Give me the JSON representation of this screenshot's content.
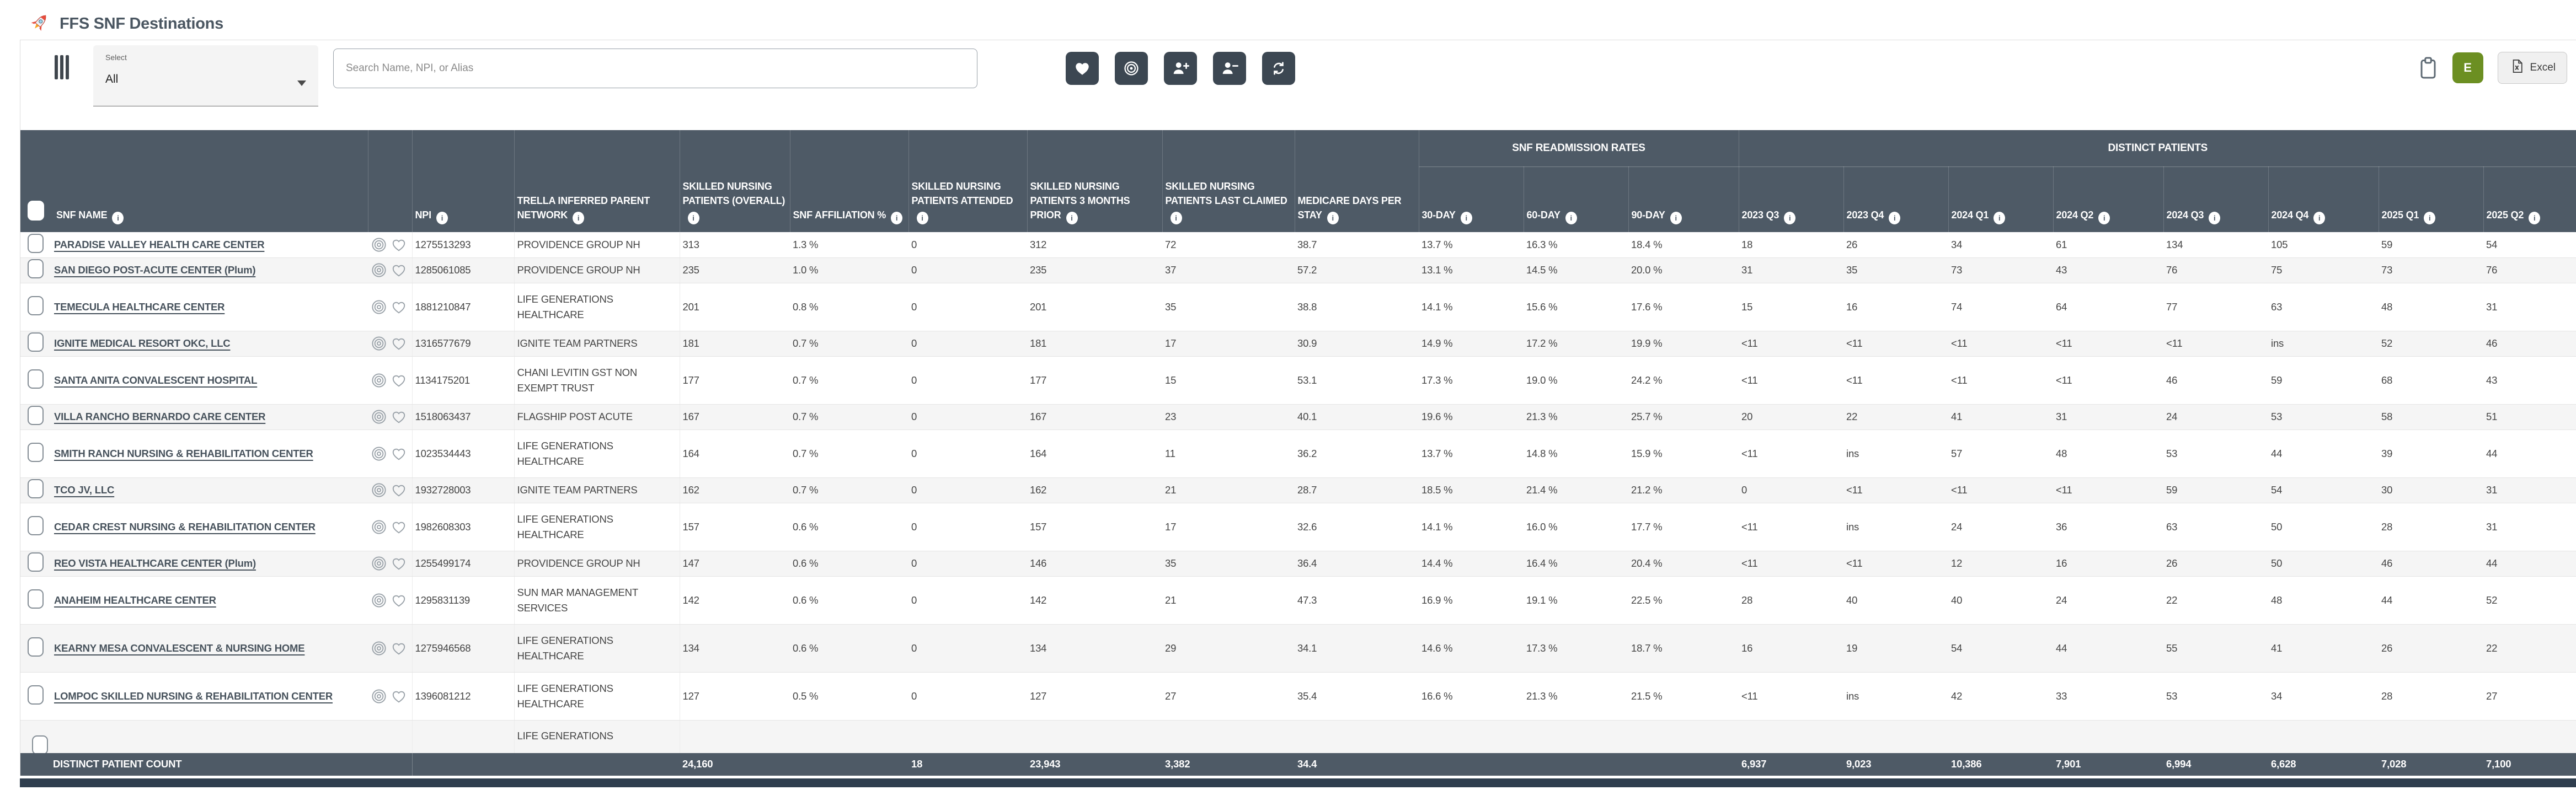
{
  "header": {
    "title": "FFS SNF Destinations"
  },
  "toolbar": {
    "filter_label": "Select",
    "filter_value": "All",
    "search_placeholder": "Search Name, NPI, or Alias",
    "actions": [
      "heart",
      "target",
      "person-add",
      "person-remove",
      "refresh"
    ],
    "avatar_label": "E",
    "excel_label": "Excel"
  },
  "colors": {
    "header_bg": "#4E5A66",
    "button_dark": "#3C4752",
    "accent_green": "#6C8F22",
    "scrollbar": "#2F3E4E",
    "row_alt": "#F5F5F5"
  },
  "table": {
    "groups": {
      "rates_group": "SNF READMISSION RATES",
      "patients_group": "DISTINCT PATIENTS"
    },
    "columns": {
      "snf_name": "SNF NAME",
      "npi": "NPI",
      "network": "TRELLA INFERRED PARENT NETWORK",
      "overall": "SKILLED NURSING PATIENTS (OVERALL)",
      "affiliation": "SNF AFFILIATION %",
      "attended": "SKILLED NURSING PATIENTS ATTENDED",
      "prior": "SKILLED NURSING PATIENTS 3 MONTHS PRIOR",
      "last_claimed": "SKILLED NURSING PATIENTS LAST CLAIMED",
      "medicare_days": "MEDICARE DAYS PER STAY",
      "rates": [
        "30-DAY",
        "60-DAY",
        "90-DAY"
      ],
      "quarters": [
        "2023 Q3",
        "2023 Q4",
        "2024 Q1",
        "2024 Q2",
        "2024 Q3",
        "2024 Q4",
        "2025 Q1",
        "2025 Q2"
      ]
    },
    "rows": [
      {
        "name": "PARADISE VALLEY HEALTH CARE CENTER",
        "npi": "1275513293",
        "network": "PROVIDENCE GROUP NH",
        "overall": "313",
        "affiliation": "1.3 %",
        "attended": "0",
        "prior": "312",
        "last_claimed": "72",
        "medicare_days": "38.7",
        "rates": [
          "13.7 %",
          "16.3 %",
          "18.4 %"
        ],
        "quarters": [
          "18",
          "26",
          "34",
          "61",
          "134",
          "105",
          "59",
          "54"
        ]
      },
      {
        "name": "SAN DIEGO POST-ACUTE CENTER (Plum)",
        "npi": "1285061085",
        "network": "PROVIDENCE GROUP NH",
        "overall": "235",
        "affiliation": "1.0 %",
        "attended": "0",
        "prior": "235",
        "last_claimed": "37",
        "medicare_days": "57.2",
        "rates": [
          "13.1 %",
          "14.5 %",
          "20.0 %"
        ],
        "quarters": [
          "31",
          "35",
          "73",
          "43",
          "76",
          "75",
          "73",
          "76"
        ]
      },
      {
        "name": "TEMECULA HEALTHCARE CENTER",
        "npi": "1881210847",
        "network": "LIFE GENERATIONS\nHEALTHCARE",
        "overall": "201",
        "affiliation": "0.8 %",
        "attended": "0",
        "prior": "201",
        "last_claimed": "35",
        "medicare_days": "38.8",
        "rates": [
          "14.1 %",
          "15.6 %",
          "17.6 %"
        ],
        "quarters": [
          "15",
          "16",
          "74",
          "64",
          "77",
          "63",
          "48",
          "31"
        ]
      },
      {
        "name": "IGNITE MEDICAL RESORT OKC, LLC",
        "npi": "1316577679",
        "network": "IGNITE TEAM PARTNERS",
        "overall": "181",
        "affiliation": "0.7 %",
        "attended": "0",
        "prior": "181",
        "last_claimed": "17",
        "medicare_days": "30.9",
        "rates": [
          "14.9 %",
          "17.2 %",
          "19.9 %"
        ],
        "quarters": [
          "<11",
          "<11",
          "<11",
          "<11",
          "<11",
          "ins",
          "52",
          "46"
        ]
      },
      {
        "name": "SANTA ANITA CONVALESCENT HOSPITAL",
        "npi": "1134175201",
        "network": "CHANI LEVITIN GST NON\nEXEMPT TRUST",
        "overall": "177",
        "affiliation": "0.7 %",
        "attended": "0",
        "prior": "177",
        "last_claimed": "15",
        "medicare_days": "53.1",
        "rates": [
          "17.3 %",
          "19.0 %",
          "24.2 %"
        ],
        "quarters": [
          "<11",
          "<11",
          "<11",
          "<11",
          "46",
          "59",
          "68",
          "43"
        ]
      },
      {
        "name": "VILLA RANCHO BERNARDO CARE CENTER",
        "npi": "1518063437",
        "network": "FLAGSHIP POST ACUTE",
        "overall": "167",
        "affiliation": "0.7 %",
        "attended": "0",
        "prior": "167",
        "last_claimed": "23",
        "medicare_days": "40.1",
        "rates": [
          "19.6 %",
          "21.3 %",
          "25.7 %"
        ],
        "quarters": [
          "20",
          "22",
          "41",
          "31",
          "24",
          "53",
          "58",
          "51"
        ]
      },
      {
        "name": "SMITH RANCH NURSING & REHABILITATION CENTER",
        "npi": "1023534443",
        "network": "LIFE GENERATIONS\nHEALTHCARE",
        "overall": "164",
        "affiliation": "0.7 %",
        "attended": "0",
        "prior": "164",
        "last_claimed": "11",
        "medicare_days": "36.2",
        "rates": [
          "13.7 %",
          "14.8 %",
          "15.9 %"
        ],
        "quarters": [
          "<11",
          "ins",
          "57",
          "48",
          "53",
          "44",
          "39",
          "44"
        ]
      },
      {
        "name": "TCO JV, LLC",
        "npi": "1932728003",
        "network": "IGNITE TEAM PARTNERS",
        "overall": "162",
        "affiliation": "0.7 %",
        "attended": "0",
        "prior": "162",
        "last_claimed": "21",
        "medicare_days": "28.7",
        "rates": [
          "18.5 %",
          "21.4 %",
          "21.2 %"
        ],
        "quarters": [
          "0",
          "<11",
          "<11",
          "<11",
          "59",
          "54",
          "30",
          "31"
        ]
      },
      {
        "name": "CEDAR CREST NURSING & REHABILITATION CENTER",
        "npi": "1982608303",
        "network": "LIFE GENERATIONS\nHEALTHCARE",
        "overall": "157",
        "affiliation": "0.6 %",
        "attended": "0",
        "prior": "157",
        "last_claimed": "17",
        "medicare_days": "32.6",
        "rates": [
          "14.1 %",
          "16.0 %",
          "17.7 %"
        ],
        "quarters": [
          "<11",
          "ins",
          "24",
          "36",
          "63",
          "50",
          "28",
          "31"
        ]
      },
      {
        "name": "REO VISTA HEALTHCARE CENTER (Plum)",
        "npi": "1255499174",
        "network": "PROVIDENCE GROUP NH",
        "overall": "147",
        "affiliation": "0.6 %",
        "attended": "0",
        "prior": "146",
        "last_claimed": "35",
        "medicare_days": "36.4",
        "rates": [
          "14.4 %",
          "16.4 %",
          "20.4 %"
        ],
        "quarters": [
          "<11",
          "<11",
          "12",
          "16",
          "26",
          "50",
          "46",
          "44"
        ]
      },
      {
        "name": "ANAHEIM HEALTHCARE CENTER",
        "npi": "1295831139",
        "network": "SUN MAR MANAGEMENT\nSERVICES",
        "overall": "142",
        "affiliation": "0.6 %",
        "attended": "0",
        "prior": "142",
        "last_claimed": "21",
        "medicare_days": "47.3",
        "rates": [
          "16.9 %",
          "19.1 %",
          "22.5 %"
        ],
        "quarters": [
          "28",
          "40",
          "40",
          "24",
          "22",
          "48",
          "44",
          "52"
        ]
      },
      {
        "name": "KEARNY MESA CONVALESCENT & NURSING HOME",
        "npi": "1275946568",
        "network": "LIFE GENERATIONS\nHEALTHCARE",
        "overall": "134",
        "affiliation": "0.6 %",
        "attended": "0",
        "prior": "134",
        "last_claimed": "29",
        "medicare_days": "34.1",
        "rates": [
          "14.6 %",
          "17.3 %",
          "18.7 %"
        ],
        "quarters": [
          "16",
          "19",
          "54",
          "44",
          "55",
          "41",
          "26",
          "22"
        ]
      },
      {
        "name": "LOMPOC SKILLED NURSING & REHABILITATION CENTER",
        "npi": "1396081212",
        "network": "LIFE GENERATIONS\nHEALTHCARE",
        "overall": "127",
        "affiliation": "0.5 %",
        "attended": "0",
        "prior": "127",
        "last_claimed": "27",
        "medicare_days": "35.4",
        "rates": [
          "16.6 %",
          "21.3 %",
          "21.5 %"
        ],
        "quarters": [
          "<11",
          "ins",
          "42",
          "33",
          "53",
          "34",
          "28",
          "27"
        ]
      }
    ],
    "partial_row": {
      "network": "LIFE GENERATIONS"
    },
    "footer": {
      "label": "DISTINCT PATIENT COUNT",
      "overall": "24,160",
      "affiliation": "",
      "attended": "18",
      "prior": "23,943",
      "last_claimed": "3,382",
      "medicare_days": "34.4",
      "rates": [
        "",
        "",
        ""
      ],
      "quarters": [
        "6,937",
        "9,023",
        "10,386",
        "7,901",
        "6,994",
        "6,628",
        "7,028",
        "7,100"
      ]
    }
  }
}
